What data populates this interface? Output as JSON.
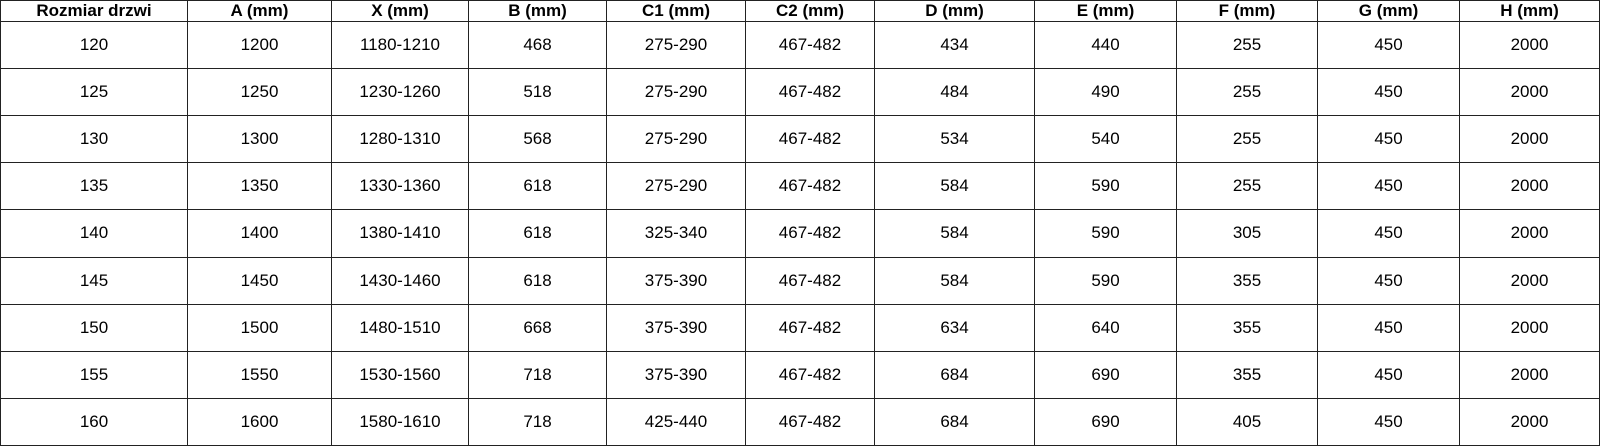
{
  "table": {
    "headers": [
      "Rozmiar drzwi",
      "A (mm)",
      "X (mm)",
      "B (mm)",
      "C1 (mm)",
      "C2 (mm)",
      "D (mm)",
      "E (mm)",
      "F (mm)",
      "G (mm)",
      "H (mm)"
    ],
    "rows": [
      [
        "120",
        "1200",
        "1180-1210",
        "468",
        "275-290",
        "467-482",
        "434",
        "440",
        "255",
        "450",
        "2000"
      ],
      [
        "125",
        "1250",
        "1230-1260",
        "518",
        "275-290",
        "467-482",
        "484",
        "490",
        "255",
        "450",
        "2000"
      ],
      [
        "130",
        "1300",
        "1280-1310",
        "568",
        "275-290",
        "467-482",
        "534",
        "540",
        "255",
        "450",
        "2000"
      ],
      [
        "135",
        "1350",
        "1330-1360",
        "618",
        "275-290",
        "467-482",
        "584",
        "590",
        "255",
        "450",
        "2000"
      ],
      [
        "140",
        "1400",
        "1380-1410",
        "618",
        "325-340",
        "467-482",
        "584",
        "590",
        "305",
        "450",
        "2000"
      ],
      [
        "145",
        "1450",
        "1430-1460",
        "618",
        "375-390",
        "467-482",
        "584",
        "590",
        "355",
        "450",
        "2000"
      ],
      [
        "150",
        "1500",
        "1480-1510",
        "668",
        "375-390",
        "467-482",
        "634",
        "640",
        "355",
        "450",
        "2000"
      ],
      [
        "155",
        "1550",
        "1530-1560",
        "718",
        "375-390",
        "467-482",
        "684",
        "690",
        "355",
        "450",
        "2000"
      ],
      [
        "160",
        "1600",
        "1580-1610",
        "718",
        "425-440",
        "467-482",
        "684",
        "690",
        "405",
        "450",
        "2000"
      ]
    ]
  }
}
